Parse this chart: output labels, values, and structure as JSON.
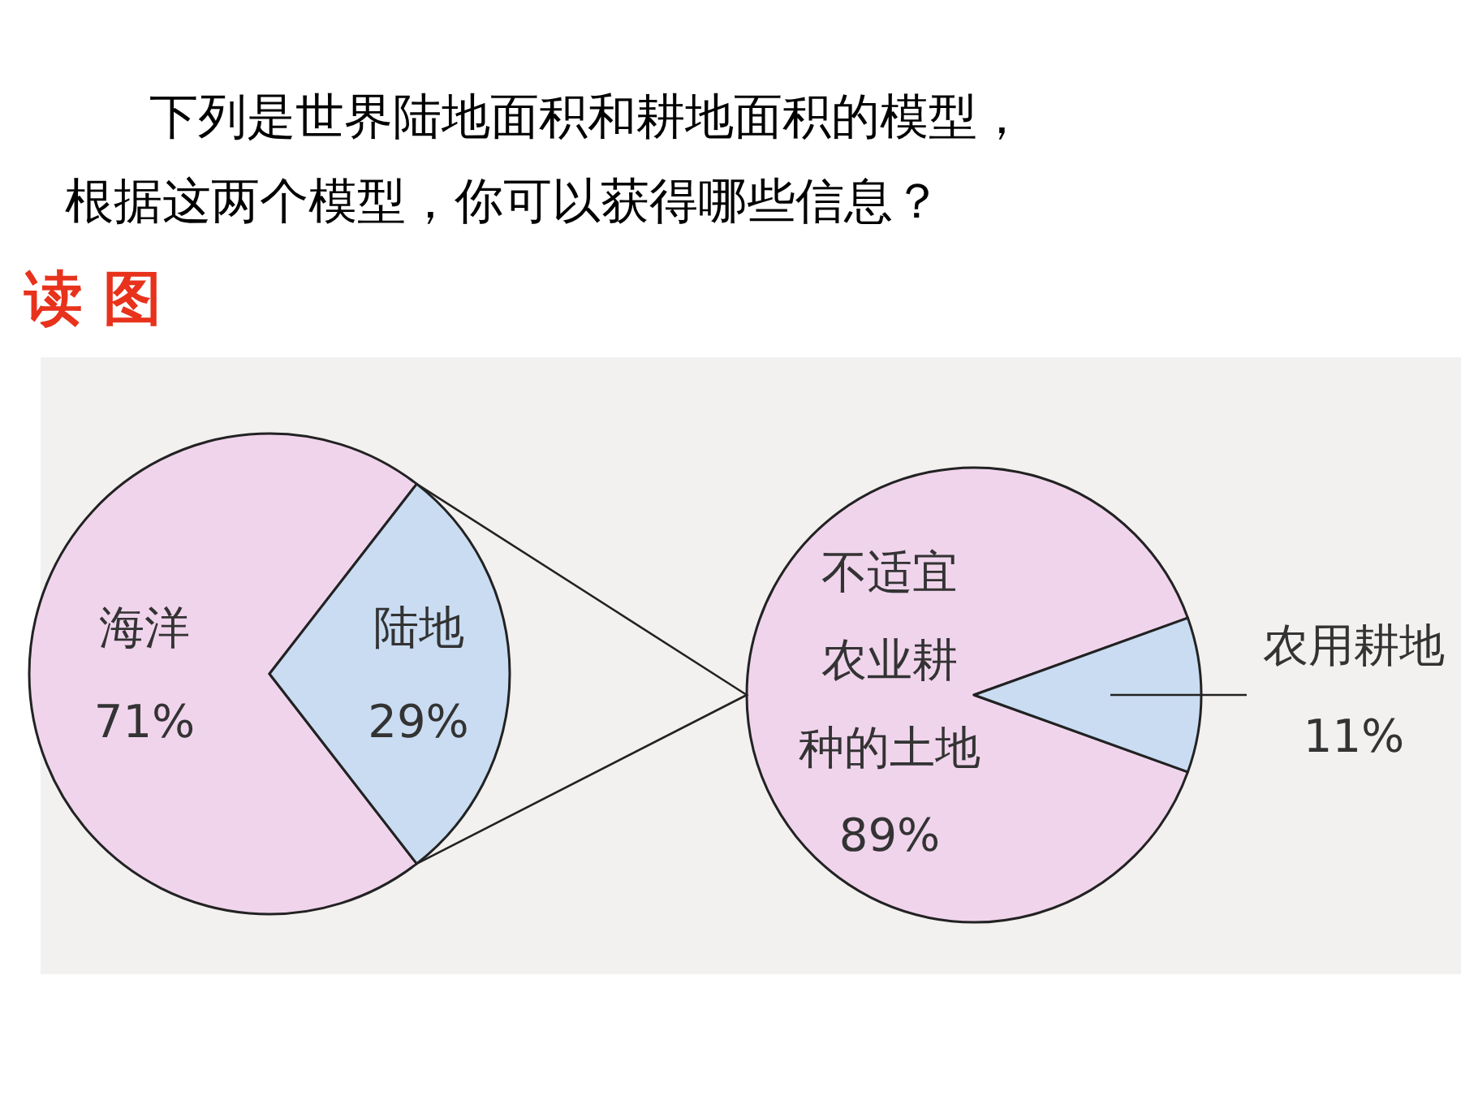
{
  "chart_data": [
    {
      "type": "pie",
      "title": "下列是世界陆地面积和耕地面积的模型，根据这两个模型，你可以获得哪些信息？",
      "subtitle": "读 图",
      "categories": [
        "海洋",
        "陆地"
      ],
      "values": [
        71,
        29
      ],
      "colors": [
        "#f0d4ec",
        "#c9dcf2"
      ],
      "value_labels": [
        "71%",
        "29%"
      ]
    },
    {
      "type": "pie",
      "categories": [
        "不适宜农业耕种的土地",
        "农用耕地"
      ],
      "values": [
        89,
        11
      ],
      "colors": [
        "#f0d4ec",
        "#c9dcf2"
      ],
      "value_labels": [
        "89%",
        "11%"
      ]
    }
  ]
}
